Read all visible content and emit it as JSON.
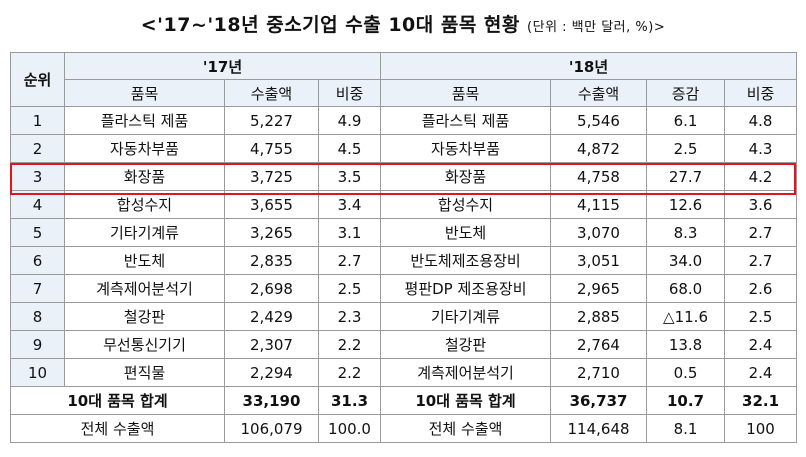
{
  "title": {
    "main": "<'17~'18년 중소기업 수출 10대 품목 현황",
    "unit": "(단위 : 백만 달러, %)>"
  },
  "header": {
    "rank": "순위",
    "year17": "'17년",
    "year18": "'18년",
    "item": "품목",
    "export": "수출액",
    "share": "비중",
    "growth": "증감"
  },
  "rows": [
    {
      "rank": "1",
      "item17": "플라스틱 제품",
      "exp17": "5,227",
      "share17": "4.9",
      "item18": "플라스틱 제품",
      "exp18": "5,546",
      "growth18": "6.1",
      "share18": "4.8"
    },
    {
      "rank": "2",
      "item17": "자동차부품",
      "exp17": "4,755",
      "share17": "4.5",
      "item18": "자동차부품",
      "exp18": "4,872",
      "growth18": "2.5",
      "share18": "4.3"
    },
    {
      "rank": "3",
      "item17": "화장품",
      "exp17": "3,725",
      "share17": "3.5",
      "item18": "화장품",
      "exp18": "4,758",
      "growth18": "27.7",
      "share18": "4.2"
    },
    {
      "rank": "4",
      "item17": "합성수지",
      "exp17": "3,655",
      "share17": "3.4",
      "item18": "합성수지",
      "exp18": "4,115",
      "growth18": "12.6",
      "share18": "3.6"
    },
    {
      "rank": "5",
      "item17": "기타기계류",
      "exp17": "3,265",
      "share17": "3.1",
      "item18": "반도체",
      "exp18": "3,070",
      "growth18": "8.3",
      "share18": "2.7"
    },
    {
      "rank": "6",
      "item17": "반도체",
      "exp17": "2,835",
      "share17": "2.7",
      "item18": "반도체제조용장비",
      "exp18": "3,051",
      "growth18": "34.0",
      "share18": "2.7"
    },
    {
      "rank": "7",
      "item17": "계측제어분석기",
      "exp17": "2,698",
      "share17": "2.5",
      "item18": "평판DP 제조용장비",
      "exp18": "2,965",
      "growth18": "68.0",
      "share18": "2.6"
    },
    {
      "rank": "8",
      "item17": "철강판",
      "exp17": "2,429",
      "share17": "2.3",
      "item18": "기타기계류",
      "exp18": "2,885",
      "growth18": "△11.6",
      "share18": "2.5"
    },
    {
      "rank": "9",
      "item17": "무선통신기기",
      "exp17": "2,307",
      "share17": "2.2",
      "item18": "철강판",
      "exp18": "2,764",
      "growth18": "13.8",
      "share18": "2.4"
    },
    {
      "rank": "10",
      "item17": "편직물",
      "exp17": "2,294",
      "share17": "2.2",
      "item18": "계측제어분석기",
      "exp18": "2,710",
      "growth18": "0.5",
      "share18": "2.4"
    }
  ],
  "top10": {
    "label17": "10대 품목 합계",
    "exp17": "33,190",
    "share17": "31.3",
    "label18": "10대 품목 합계",
    "exp18": "36,737",
    "growth18": "10.7",
    "share18": "32.1"
  },
  "total": {
    "label17": "전체 수출액",
    "exp17": "106,079",
    "share17": "100.0",
    "label18": "전체 수출액",
    "exp18": "114,648",
    "growth18": "8.1",
    "share18": "100"
  },
  "highlight_color": "#e0161e"
}
